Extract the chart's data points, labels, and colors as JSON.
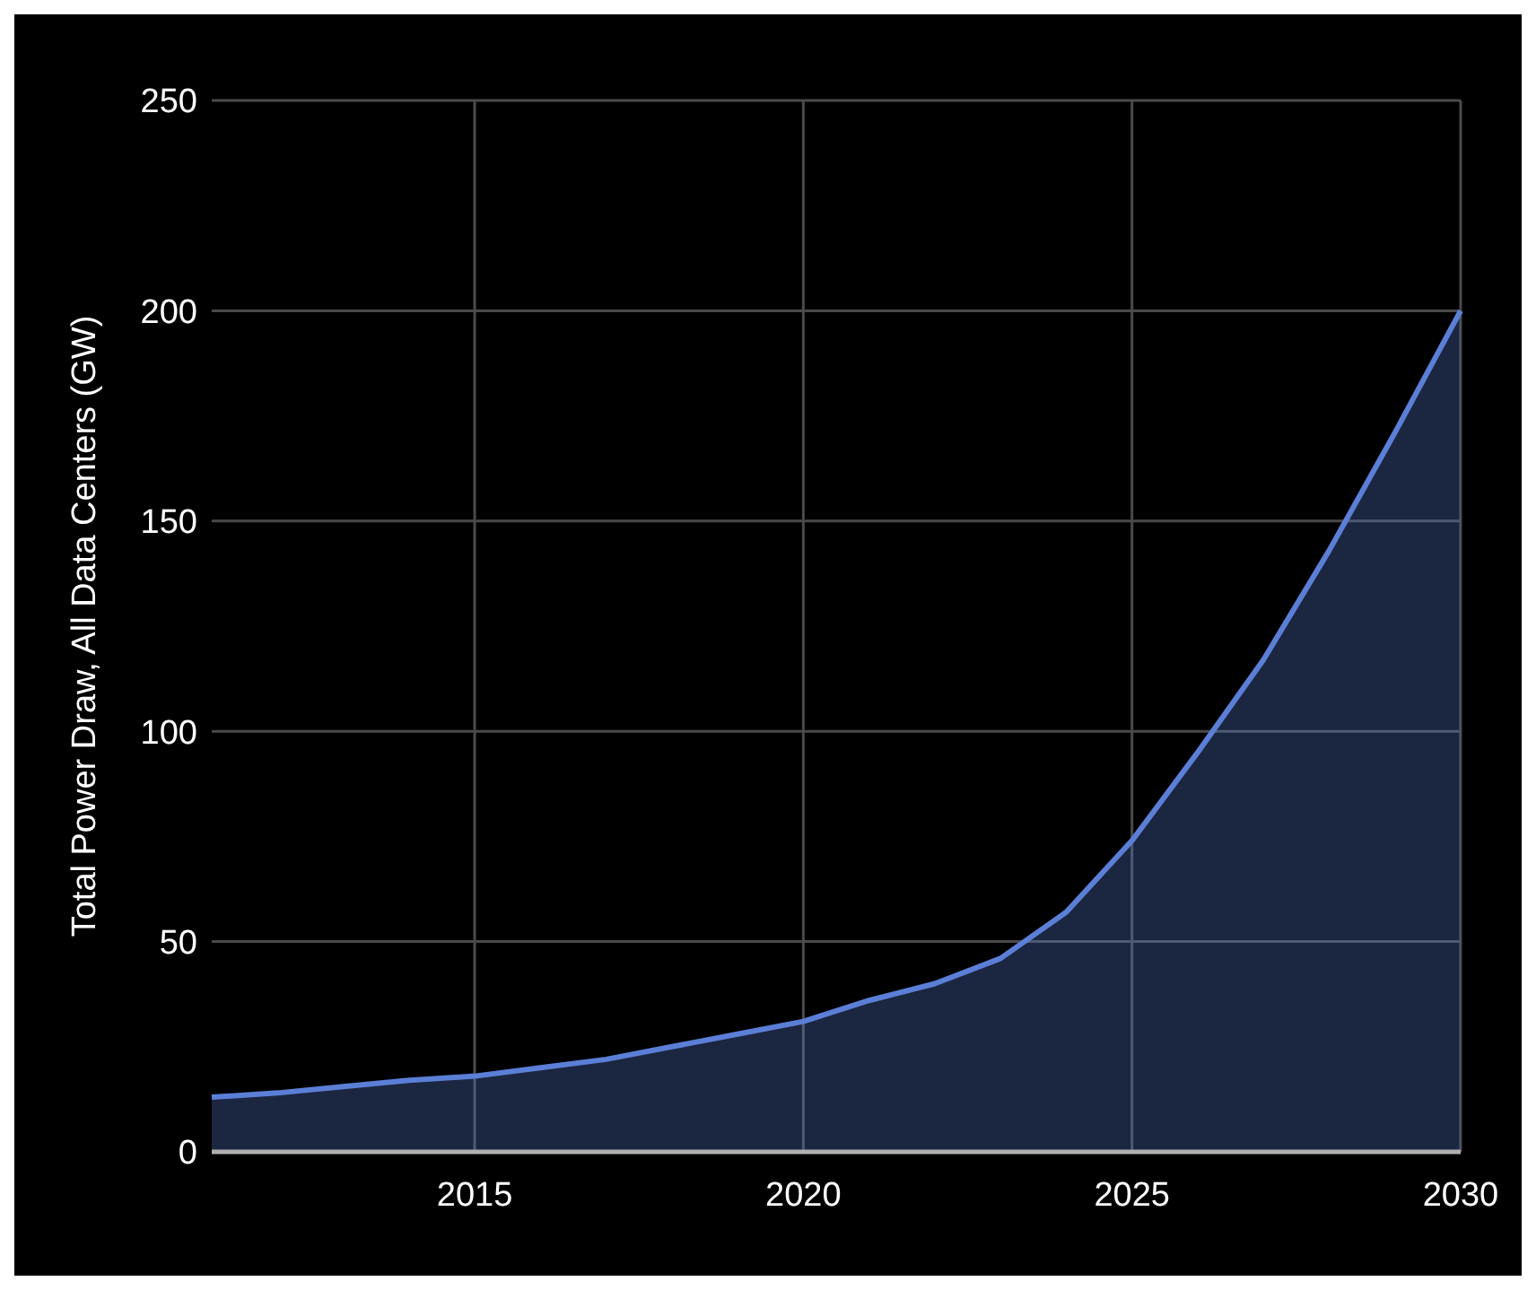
{
  "chart_data": {
    "type": "area",
    "ylabel": "Total Power Draw, All Data Centers (GW)",
    "x": [
      2011,
      2012,
      2013,
      2014,
      2015,
      2016,
      2017,
      2018,
      2019,
      2020,
      2021,
      2022,
      2023,
      2024,
      2025,
      2026,
      2027,
      2028,
      2029,
      2030
    ],
    "series": [
      {
        "color": "#5b7fd6",
        "values": [
          13,
          14,
          15.5,
          17,
          18,
          20,
          22,
          25,
          28,
          31,
          36,
          40,
          46,
          57,
          74,
          95,
          117,
          143,
          171,
          200
        ]
      }
    ],
    "xlim": [
      2011,
      2030
    ],
    "xticks": [
      2015,
      2020,
      2025,
      2030
    ],
    "ylim": [
      0,
      250
    ],
    "yticks": [
      0,
      50,
      100,
      150,
      200,
      250
    ],
    "grid": true
  }
}
